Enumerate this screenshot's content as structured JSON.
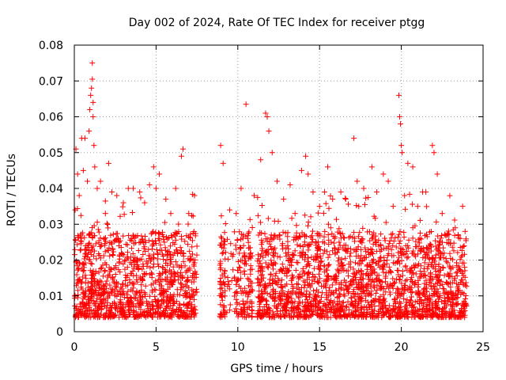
{
  "chart_data": {
    "type": "scatter",
    "title": "Day 002 of 2024, Rate Of TEC Index for receiver ptgg",
    "xlabel": "GPS time / hours",
    "ylabel": "ROTI / TECUs",
    "xlim": [
      0,
      25
    ],
    "ylim": [
      0,
      0.08
    ],
    "xticks": [
      0,
      5,
      10,
      15,
      20,
      25
    ],
    "xtick_labels": [
      "0",
      "5",
      "10",
      "15",
      "20",
      "25"
    ],
    "yticks": [
      0,
      0.01,
      0.02,
      0.03,
      0.04,
      0.05,
      0.06,
      0.07,
      0.08
    ],
    "ytick_labels": [
      "0",
      "0.01",
      "0.02",
      "0.03",
      "0.04",
      "0.05",
      "0.06",
      "0.07",
      "0.08"
    ],
    "grid": true,
    "marker": "+",
    "color": "#ff0000",
    "series": [
      {
        "name": "ROTI",
        "points": [
          [
            0.05,
            0.034
          ],
          [
            0.1,
            0.051
          ],
          [
            0.2,
            0.044
          ],
          [
            0.3,
            0.038
          ],
          [
            0.45,
            0.054
          ],
          [
            0.55,
            0.045
          ],
          [
            0.65,
            0.054
          ],
          [
            0.8,
            0.042
          ],
          [
            0.9,
            0.056
          ],
          [
            0.95,
            0.062
          ],
          [
            1.0,
            0.066
          ],
          [
            1.05,
            0.068
          ],
          [
            1.1,
            0.075
          ],
          [
            1.1,
            0.0705
          ],
          [
            1.15,
            0.064
          ],
          [
            1.15,
            0.06
          ],
          [
            1.2,
            0.052
          ],
          [
            1.25,
            0.046
          ],
          [
            1.4,
            0.04
          ],
          [
            1.6,
            0.042
          ],
          [
            1.9,
            0.033
          ],
          [
            2.1,
            0.047
          ],
          [
            2.3,
            0.039
          ],
          [
            2.6,
            0.038
          ],
          [
            3.0,
            0.036
          ],
          [
            3.3,
            0.04
          ],
          [
            3.6,
            0.04
          ],
          [
            4.0,
            0.039
          ],
          [
            4.3,
            0.036
          ],
          [
            4.6,
            0.041
          ],
          [
            4.85,
            0.046
          ],
          [
            5.0,
            0.04
          ],
          [
            5.2,
            0.044
          ],
          [
            5.6,
            0.037
          ],
          [
            5.9,
            0.033
          ],
          [
            6.2,
            0.04
          ],
          [
            6.55,
            0.049
          ],
          [
            6.65,
            0.051
          ],
          [
            7.0,
            0.033
          ],
          [
            7.35,
            0.038
          ],
          [
            8.95,
            0.052
          ],
          [
            9.1,
            0.047
          ],
          [
            9.5,
            0.034
          ],
          [
            9.9,
            0.033
          ],
          [
            10.2,
            0.04
          ],
          [
            10.5,
            0.0635
          ],
          [
            11.0,
            0.038
          ],
          [
            11.4,
            0.048
          ],
          [
            11.7,
            0.061
          ],
          [
            11.8,
            0.06
          ],
          [
            11.9,
            0.056
          ],
          [
            12.1,
            0.05
          ],
          [
            12.4,
            0.042
          ],
          [
            12.8,
            0.037
          ],
          [
            13.2,
            0.041
          ],
          [
            13.5,
            0.033
          ],
          [
            13.9,
            0.045
          ],
          [
            14.15,
            0.049
          ],
          [
            14.3,
            0.044
          ],
          [
            14.6,
            0.039
          ],
          [
            15.0,
            0.035
          ],
          [
            15.3,
            0.039
          ],
          [
            15.5,
            0.046
          ],
          [
            15.8,
            0.037
          ],
          [
            16.3,
            0.039
          ],
          [
            16.6,
            0.037
          ],
          [
            17.1,
            0.054
          ],
          [
            17.3,
            0.042
          ],
          [
            17.7,
            0.04
          ],
          [
            18.2,
            0.046
          ],
          [
            18.5,
            0.039
          ],
          [
            18.9,
            0.044
          ],
          [
            19.2,
            0.042
          ],
          [
            19.5,
            0.035
          ],
          [
            19.85,
            0.066
          ],
          [
            19.9,
            0.06
          ],
          [
            19.95,
            0.058
          ],
          [
            20.0,
            0.052
          ],
          [
            20.05,
            0.05
          ],
          [
            20.2,
            0.038
          ],
          [
            20.4,
            0.047
          ],
          [
            20.7,
            0.046
          ],
          [
            21.0,
            0.035
          ],
          [
            21.3,
            0.039
          ],
          [
            21.5,
            0.039
          ],
          [
            21.9,
            0.052
          ],
          [
            22.0,
            0.05
          ],
          [
            22.2,
            0.044
          ],
          [
            22.5,
            0.033
          ],
          [
            22.8,
            0.027
          ],
          [
            23.3,
            0.029
          ],
          [
            23.6,
            0.026
          ],
          [
            23.75,
            0.035
          ],
          [
            23.9,
            0.028
          ]
        ]
      }
    ]
  }
}
